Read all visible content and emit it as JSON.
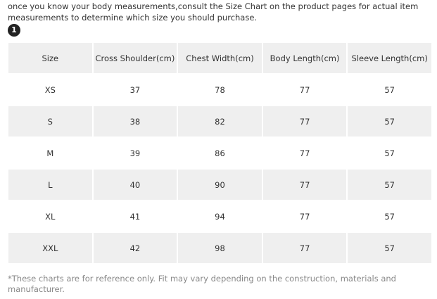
{
  "intro": "once you know your body measurements,consult the Size Chart on the product pages for actual item measurements to determine which size you should purchase.",
  "step": "1",
  "table": {
    "header": [
      "Size",
      "Cross Shoulder(cm)",
      "Chest Width(cm)",
      "Body Length(cm)",
      "Sleeve Length(cm)"
    ],
    "rows": [
      [
        "XS",
        37,
        78,
        77,
        57
      ],
      [
        "S",
        38,
        82,
        77,
        57
      ],
      [
        "M",
        39,
        86,
        77,
        57
      ],
      [
        "L",
        40,
        90,
        77,
        57
      ],
      [
        "XL",
        41,
        94,
        77,
        57
      ],
      [
        "XXL",
        42,
        98,
        77,
        57
      ]
    ]
  },
  "footnote": "*These charts are for reference only. Fit may vary depending on the construction, materials and manufacturer."
}
